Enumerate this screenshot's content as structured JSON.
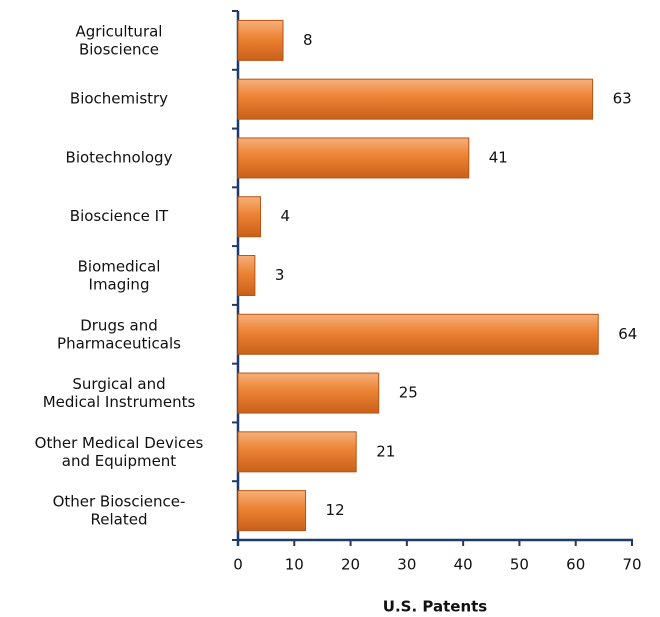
{
  "chart_data": {
    "type": "bar",
    "orientation": "horizontal",
    "x_label": "U.S. Patents",
    "categories": [
      "Agricultural\nBioscience",
      "Biochemistry",
      "Biotechnology",
      "Bioscience IT",
      "Biomedical\nImaging",
      "Drugs and\nPharmaceuticals",
      "Surgical and\nMedical Instruments",
      "Other Medical Devices\nand Equipment",
      "Other Bioscience-\nRelated"
    ],
    "values": [
      8,
      63,
      41,
      4,
      3,
      64,
      25,
      21,
      12
    ],
    "color": "#e8782a",
    "xlim": [
      0,
      70
    ],
    "xticks": [
      0,
      10,
      20,
      30,
      40,
      50,
      60,
      70
    ],
    "grid": false
  }
}
